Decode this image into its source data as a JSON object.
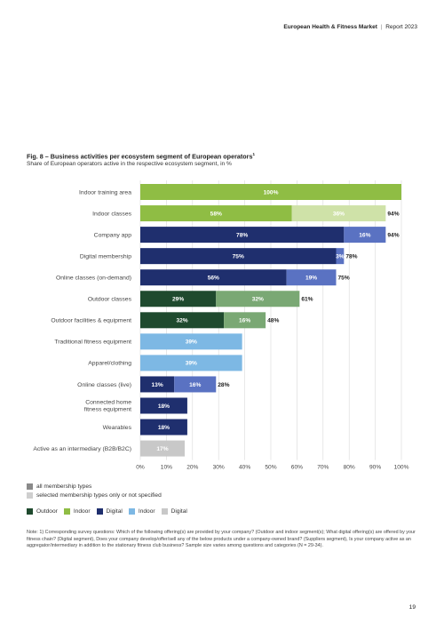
{
  "header": {
    "brand": "European Health & Fitness Market",
    "separator": "|",
    "report": "Report 2023"
  },
  "figure": {
    "title": "Fig. 8 – Business activities per ecosystem segment of European operators",
    "title_sup": "1",
    "subtitle": "Share of European operators active in the respective ecosystem segment, in %"
  },
  "colors": {
    "outdoor_all": "#1f4a2e",
    "outdoor_selected": "#7aa874",
    "indoor_all": "#8fbd44",
    "indoor_selected": "#cfe2a8",
    "digital_all": "#1f2f6e",
    "digital_selected": "#5a72c2",
    "supplier": "#7db8e4",
    "intermediary": "#c8c8c8"
  },
  "chart_data": {
    "type": "bar",
    "orientation": "horizontal",
    "stacked": true,
    "xlim": [
      0,
      100
    ],
    "ticks": [
      "0%",
      "10%",
      "20%",
      "30%",
      "40%",
      "50%",
      "60%",
      "70%",
      "80%",
      "90%",
      "100%"
    ],
    "categories": [
      "Indoor training area",
      "Indoor classes",
      "Company app",
      "Digital membership",
      "Online classes (on-demand)",
      "Outdoor classes",
      "Outdoor facilities & equipment",
      "Traditional fitness equipment",
      "Apparel/clothing",
      "Online classes (live)",
      "Connected home fitness equipment",
      "Wearables",
      "Active as an intermediary (B2B/B2C)"
    ],
    "rows": [
      {
        "segments": [
          {
            "value": 100,
            "label": "100%",
            "color": "indoor_all"
          }
        ],
        "total": ""
      },
      {
        "segments": [
          {
            "value": 58,
            "label": "58%",
            "color": "indoor_all"
          },
          {
            "value": 36,
            "label": "36%",
            "color": "indoor_selected"
          }
        ],
        "total": "94%"
      },
      {
        "segments": [
          {
            "value": 78,
            "label": "78%",
            "color": "digital_all"
          },
          {
            "value": 16,
            "label": "16%",
            "color": "digital_selected"
          }
        ],
        "total": "94%"
      },
      {
        "segments": [
          {
            "value": 75,
            "label": "75%",
            "color": "digital_all"
          },
          {
            "value": 3,
            "label": "3%",
            "color": "digital_selected"
          }
        ],
        "total": "78%"
      },
      {
        "segments": [
          {
            "value": 56,
            "label": "56%",
            "color": "digital_all"
          },
          {
            "value": 19,
            "label": "19%",
            "color": "digital_selected"
          }
        ],
        "total": "75%"
      },
      {
        "segments": [
          {
            "value": 29,
            "label": "29%",
            "color": "outdoor_all"
          },
          {
            "value": 32,
            "label": "32%",
            "color": "outdoor_selected"
          }
        ],
        "total": "61%"
      },
      {
        "segments": [
          {
            "value": 32,
            "label": "32%",
            "color": "outdoor_all"
          },
          {
            "value": 16,
            "label": "16%",
            "color": "outdoor_selected"
          }
        ],
        "total": "48%"
      },
      {
        "segments": [
          {
            "value": 39,
            "label": "39%",
            "color": "supplier"
          }
        ],
        "total": ""
      },
      {
        "segments": [
          {
            "value": 39,
            "label": "39%",
            "color": "supplier"
          }
        ],
        "total": ""
      },
      {
        "segments": [
          {
            "value": 13,
            "label": "13%",
            "color": "digital_all"
          },
          {
            "value": 16,
            "label": "16%",
            "color": "digital_selected"
          }
        ],
        "total": "28%"
      },
      {
        "segments": [
          {
            "value": 18,
            "label": "18%",
            "color": "digital_all"
          }
        ],
        "total": ""
      },
      {
        "segments": [
          {
            "value": 18,
            "label": "18%",
            "color": "digital_all"
          }
        ],
        "total": ""
      },
      {
        "segments": [
          {
            "value": 17,
            "label": "17%",
            "color": "intermediary"
          }
        ],
        "total": ""
      }
    ]
  },
  "legend": {
    "shade": [
      {
        "label": "all membership types",
        "color": "#8a8a8a"
      },
      {
        "label": "selected membership types only or not specified",
        "color": "#cfcfcf"
      }
    ],
    "segments": [
      {
        "label": "Outdoor",
        "color": "#1f4a2e"
      },
      {
        "label": "Indoor",
        "color": "#8fbd44"
      },
      {
        "label": "Digital",
        "color": "#1f2f6e"
      },
      {
        "label": "Indoor",
        "color": "#7db8e4"
      },
      {
        "label": "Digital",
        "color": "#c8c8c8"
      }
    ]
  },
  "note": "Note: 1) Corresponding survey questions: Which of the following offering(s) are provided by your company? (Outdoor and indoor segment(s); What digital offering(s) are offered by your fitness chain? (Digital segment), Does your company develop/offer/sell any of the below products under a company-owned brand? (Suppliers segment), Is your company active as an aggregator/intermediary in addition to the stationary fitness club business? Sample size varies among questions and categories (N = 29-34).",
  "page_number": "19"
}
